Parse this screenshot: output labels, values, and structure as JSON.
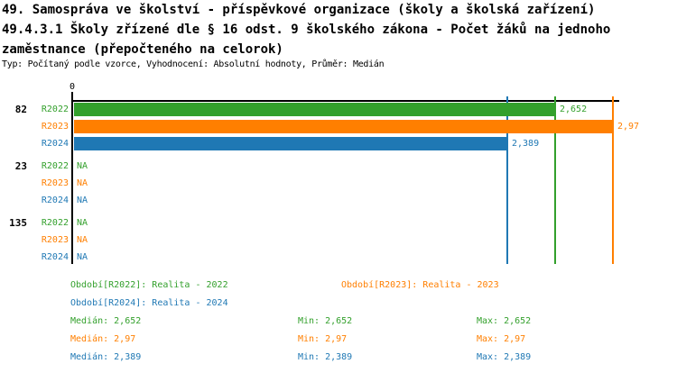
{
  "header": {
    "title_lines": [
      "49. Samospráva ve školství - příspěvkové organizace (školy a školská zařízení)",
      "49.4.3.1 Školy zřízené dle § 16 odst. 9 školského zákona - Počet žáků na jednoho",
      "zaměstnance (přepočteného na celorok)"
    ],
    "meta": "Typ: Počítaný podle vzorce, Vyhodnocení: Absolutní hodnoty, Průměr: Medián"
  },
  "chart_data": {
    "type": "bar",
    "orientation": "horizontal",
    "x_axis": {
      "origin_label": "0",
      "xlim": [
        0,
        3.0
      ]
    },
    "series_colors": {
      "R2022": "#33a02c",
      "R2023": "#ff7f00",
      "R2024": "#1f78b4"
    },
    "groups": [
      {
        "label": "82",
        "bars": [
          {
            "series": "R2022",
            "value": 2.652,
            "display": "2,652"
          },
          {
            "series": "R2023",
            "value": 2.97,
            "display": "2,97"
          },
          {
            "series": "R2024",
            "value": 2.389,
            "display": "2,389"
          }
        ]
      },
      {
        "label": "23",
        "bars": [
          {
            "series": "R2022",
            "value": null,
            "display": "NA"
          },
          {
            "series": "R2023",
            "value": null,
            "display": "NA"
          },
          {
            "series": "R2024",
            "value": null,
            "display": "NA"
          }
        ]
      },
      {
        "label": "135",
        "bars": [
          {
            "series": "R2022",
            "value": null,
            "display": "NA"
          },
          {
            "series": "R2023",
            "value": null,
            "display": "NA"
          },
          {
            "series": "R2024",
            "value": null,
            "display": "NA"
          }
        ]
      }
    ],
    "median_lines": [
      {
        "series": "R2024",
        "value": 2.389
      },
      {
        "series": "R2022",
        "value": 2.652
      },
      {
        "series": "R2023",
        "value": 2.97
      }
    ]
  },
  "legend": {
    "items": [
      {
        "series": "R2022",
        "text": "Období[R2022]: Realita - 2022"
      },
      {
        "series": "R2023",
        "text": "Období[R2023]: Realita - 2023"
      },
      {
        "series": "R2024",
        "text": "Období[R2024]: Realita - 2024"
      }
    ]
  },
  "stats": {
    "rows": [
      {
        "series": "R2022",
        "cells": [
          "Medián: 2,652",
          "Min: 2,652",
          "Max: 2,652"
        ]
      },
      {
        "series": "R2023",
        "cells": [
          "Medián: 2,97",
          "Min: 2,97",
          "Max: 2,97"
        ]
      },
      {
        "series": "R2024",
        "cells": [
          "Medián: 2,389",
          "Min: 2,389",
          "Max: 2,389"
        ]
      }
    ]
  }
}
